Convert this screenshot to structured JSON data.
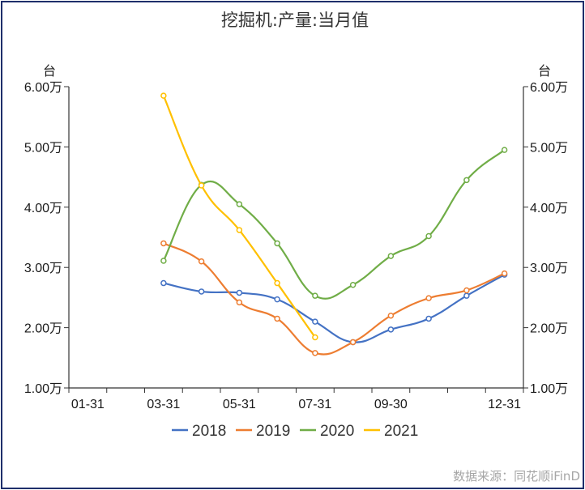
{
  "chart_data": {
    "type": "line",
    "title": "挖掘机:产量:当月值",
    "y_unit_left": "台",
    "y_unit_right": "台",
    "x_tick_labels": [
      "01-31",
      "03-31",
      "05-31",
      "07-31",
      "09-30",
      "12-31"
    ],
    "x_months": [
      1,
      3,
      5,
      7,
      9,
      12
    ],
    "y_ticks": [
      10000,
      20000,
      30000,
      40000,
      50000,
      60000
    ],
    "y_tick_labels": [
      "1.00万",
      "2.00万",
      "3.00万",
      "4.00万",
      "5.00万",
      "6.00万"
    ],
    "ylim": [
      10000,
      60000
    ],
    "smooth": true,
    "legend_position": "bottom-center",
    "series": [
      {
        "name": "2018",
        "color": "#4472c4",
        "months": [
          3,
          4,
          5,
          6,
          7,
          8,
          9,
          10,
          11,
          12
        ],
        "values": [
          27400,
          26000,
          25800,
          24700,
          21000,
          17600,
          19700,
          21500,
          25300,
          28800
        ]
      },
      {
        "name": "2019",
        "color": "#ed7d31",
        "months": [
          3,
          4,
          5,
          6,
          7,
          8,
          9,
          10,
          11,
          12
        ],
        "values": [
          34000,
          31000,
          24200,
          21500,
          15800,
          17600,
          22000,
          24900,
          26200,
          29000
        ]
      },
      {
        "name": "2020",
        "color": "#70ad47",
        "months": [
          3,
          4,
          5,
          6,
          7,
          8,
          9,
          10,
          11,
          12
        ],
        "values": [
          31100,
          43700,
          40500,
          34000,
          25300,
          27100,
          31900,
          35200,
          44500,
          49500
        ]
      },
      {
        "name": "2021",
        "color": "#ffc000",
        "months": [
          3,
          4,
          5,
          6,
          7
        ],
        "values": [
          58500,
          43600,
          36200,
          27400,
          18400
        ]
      }
    ],
    "source": "数据来源：同花顺iFinD"
  }
}
